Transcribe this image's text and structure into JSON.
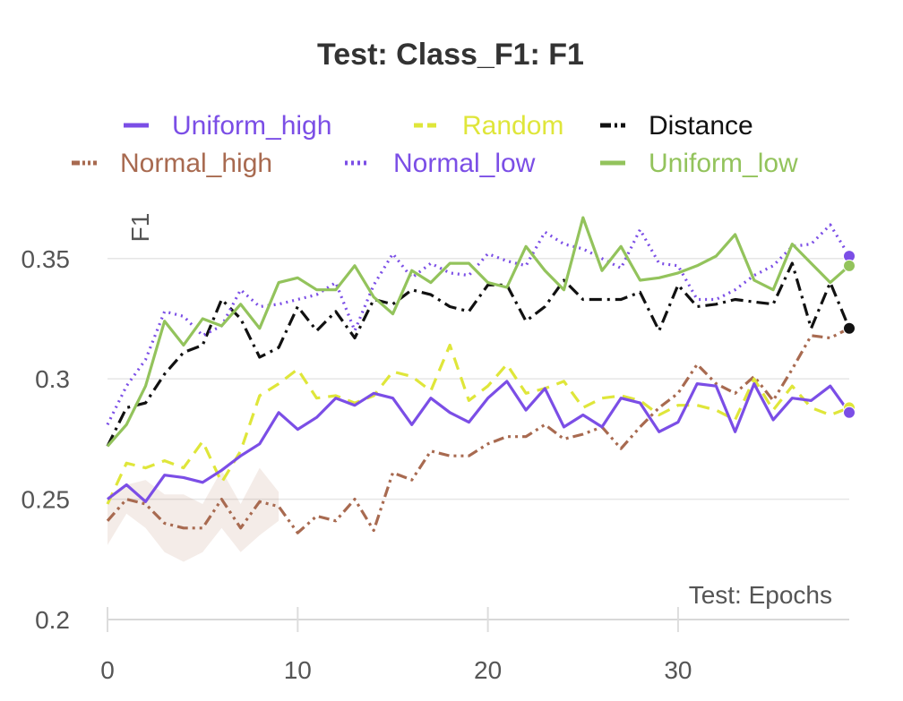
{
  "chart_data": {
    "type": "line",
    "title": "Test: Class_F1: F1",
    "xlabel": "Test: Epochs",
    "ylabel": "F1",
    "xlim": [
      0,
      39
    ],
    "ylim": [
      0.2,
      0.37
    ],
    "xticks": [
      0,
      10,
      20,
      30
    ],
    "xtick_labels": [
      "0",
      "10",
      "20",
      "30"
    ],
    "yticks": [
      0.2,
      0.25,
      0.3,
      0.35
    ],
    "ytick_labels": [
      "0.2",
      "0.25",
      "0.3",
      "0.35"
    ],
    "grid": true,
    "legend_position": "top",
    "x": [
      0,
      1,
      2,
      3,
      4,
      5,
      6,
      7,
      8,
      9,
      10,
      11,
      12,
      13,
      14,
      15,
      16,
      17,
      18,
      19,
      20,
      21,
      22,
      23,
      24,
      25,
      26,
      27,
      28,
      29,
      30,
      31,
      32,
      33,
      34,
      35,
      36,
      37,
      38,
      39
    ],
    "series": [
      {
        "name": "Uniform_high",
        "color": "#7b4ee6",
        "dash": "solid",
        "values": [
          0.25,
          0.256,
          0.249,
          0.26,
          0.259,
          0.257,
          0.262,
          0.268,
          0.273,
          0.286,
          0.279,
          0.284,
          0.292,
          0.289,
          0.294,
          0.292,
          0.281,
          0.292,
          0.286,
          0.282,
          0.292,
          0.299,
          0.287,
          0.296,
          0.28,
          0.285,
          0.28,
          0.292,
          0.29,
          0.278,
          0.282,
          0.298,
          0.297,
          0.278,
          0.298,
          0.283,
          0.292,
          0.291,
          0.297,
          0.286
        ]
      },
      {
        "name": "Random",
        "color": "#dfe63a",
        "dash": "dashed",
        "values": [
          0.248,
          0.265,
          0.263,
          0.266,
          0.263,
          0.274,
          0.257,
          0.27,
          0.293,
          0.298,
          0.304,
          0.292,
          0.293,
          0.29,
          0.293,
          0.303,
          0.301,
          0.295,
          0.314,
          0.291,
          0.297,
          0.306,
          0.294,
          0.296,
          0.299,
          0.288,
          0.292,
          0.293,
          0.291,
          0.285,
          0.289,
          0.289,
          0.287,
          0.283,
          0.3,
          0.287,
          0.297,
          0.288,
          0.285,
          0.288
        ]
      },
      {
        "name": "Distance",
        "color": "#111111",
        "dash": "dashdot",
        "values": [
          0.272,
          0.288,
          0.29,
          0.302,
          0.311,
          0.314,
          0.333,
          0.325,
          0.309,
          0.313,
          0.33,
          0.32,
          0.328,
          0.317,
          0.333,
          0.331,
          0.337,
          0.335,
          0.33,
          0.328,
          0.339,
          0.339,
          0.324,
          0.33,
          0.341,
          0.333,
          0.333,
          0.333,
          0.336,
          0.32,
          0.339,
          0.33,
          0.331,
          0.333,
          0.332,
          0.331,
          0.348,
          0.321,
          0.34,
          0.321
        ]
      },
      {
        "name": "Normal_high",
        "color": "#a86a50",
        "dash": "dashdotdot",
        "values": [
          0.241,
          0.25,
          0.248,
          0.24,
          0.238,
          0.238,
          0.25,
          0.238,
          0.249,
          0.247,
          0.236,
          0.243,
          0.241,
          0.25,
          0.237,
          0.261,
          0.258,
          0.27,
          0.268,
          0.268,
          0.273,
          0.276,
          0.276,
          0.281,
          0.275,
          0.277,
          0.28,
          0.271,
          0.28,
          0.288,
          0.294,
          0.306,
          0.298,
          0.294,
          0.301,
          0.291,
          0.304,
          0.318,
          0.317,
          0.321
        ]
      },
      {
        "name": "Normal_low",
        "color": "#7b4ee6",
        "dash": "dotted",
        "values": [
          0.281,
          0.297,
          0.308,
          0.328,
          0.326,
          0.318,
          0.322,
          0.337,
          0.33,
          0.331,
          0.333,
          0.335,
          0.34,
          0.32,
          0.339,
          0.352,
          0.342,
          0.348,
          0.344,
          0.343,
          0.352,
          0.349,
          0.347,
          0.361,
          0.356,
          0.354,
          0.35,
          0.346,
          0.362,
          0.348,
          0.347,
          0.333,
          0.333,
          0.337,
          0.343,
          0.347,
          0.355,
          0.356,
          0.364,
          0.351
        ]
      },
      {
        "name": "Uniform_low",
        "color": "#93c35c",
        "dash": "solid",
        "values": [
          0.272,
          0.281,
          0.297,
          0.324,
          0.314,
          0.325,
          0.322,
          0.331,
          0.321,
          0.34,
          0.342,
          0.337,
          0.337,
          0.347,
          0.334,
          0.327,
          0.345,
          0.34,
          0.348,
          0.348,
          0.34,
          0.338,
          0.355,
          0.345,
          0.337,
          0.367,
          0.345,
          0.355,
          0.341,
          0.342,
          0.344,
          0.347,
          0.351,
          0.36,
          0.341,
          0.337,
          0.356,
          0.348,
          0.34,
          0.347
        ]
      }
    ]
  }
}
